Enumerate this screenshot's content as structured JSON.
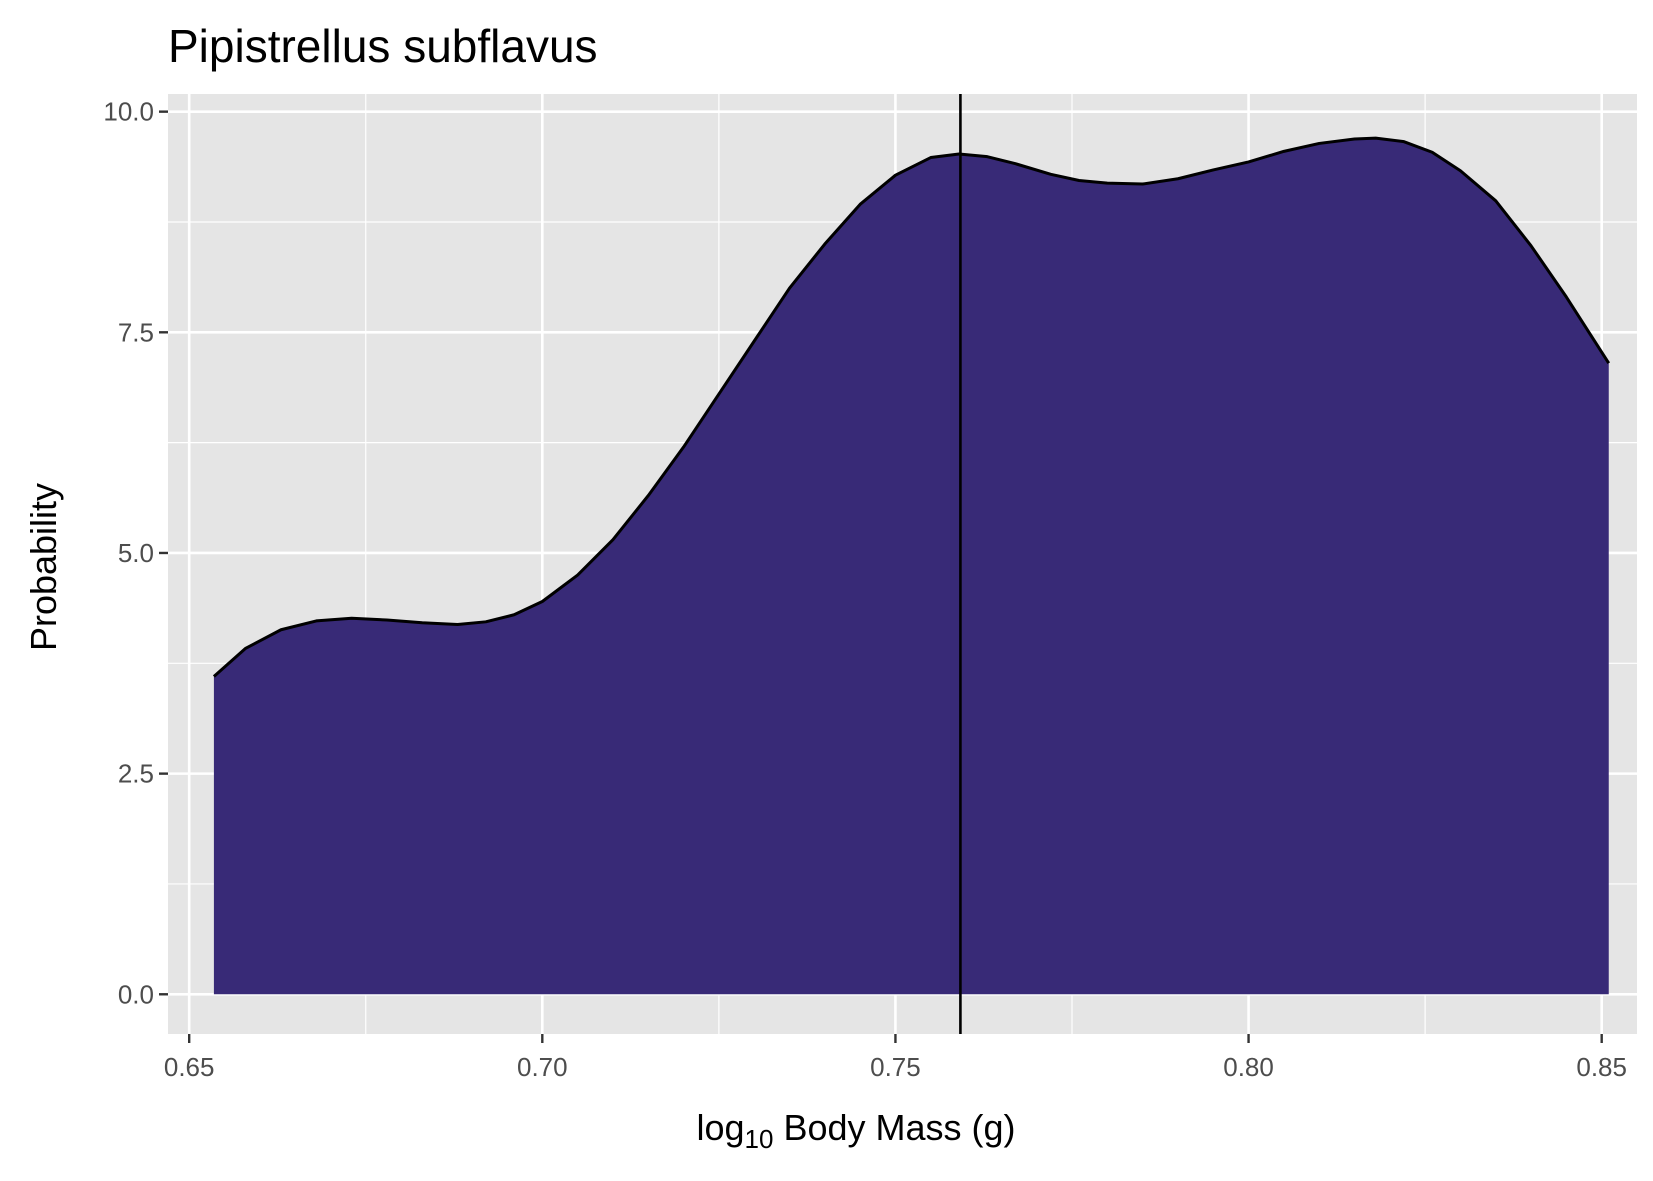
{
  "colors": {
    "panel_background": "#e5e5e5",
    "grid": "#ffffff",
    "fill": "#382a77",
    "line": "#000000"
  },
  "chart_data": {
    "type": "area",
    "title": "Pipistrellus subflavus",
    "xlabel": {
      "prefix": "log",
      "subscript": "10",
      "suffix": " Body Mass (g)"
    },
    "ylabel": "Probability",
    "xlim": [
      0.647,
      0.855
    ],
    "ylim": [
      -0.45,
      10.2
    ],
    "x_ticks": [
      0.65,
      0.7,
      0.75,
      0.8,
      0.85
    ],
    "x_tick_labels": [
      "0.65",
      "0.70",
      "0.75",
      "0.80",
      "0.85"
    ],
    "y_ticks": [
      0,
      2.5,
      5,
      7.5,
      10
    ],
    "y_tick_labels": [
      "0.0",
      "2.5",
      "5.0",
      "7.5",
      "10.0"
    ],
    "grid": true,
    "series": [
      {
        "x": [
          0.6535,
          0.658,
          0.663,
          0.668,
          0.673,
          0.678,
          0.683,
          0.688,
          0.692,
          0.696,
          0.7,
          0.705,
          0.71,
          0.715,
          0.72,
          0.725,
          0.73,
          0.735,
          0.74,
          0.745,
          0.75,
          0.755,
          0.759,
          0.763,
          0.767,
          0.772,
          0.776,
          0.78,
          0.785,
          0.79,
          0.795,
          0.8,
          0.805,
          0.81,
          0.815,
          0.818,
          0.822,
          0.826,
          0.83,
          0.835,
          0.84,
          0.845,
          0.851
        ],
        "y": [
          3.6,
          3.92,
          4.13,
          4.23,
          4.26,
          4.24,
          4.21,
          4.19,
          4.22,
          4.3,
          4.45,
          4.75,
          5.15,
          5.65,
          6.2,
          6.8,
          7.4,
          8.0,
          8.5,
          8.95,
          9.28,
          9.48,
          9.52,
          9.49,
          9.41,
          9.29,
          9.22,
          9.19,
          9.18,
          9.24,
          9.34,
          9.43,
          9.55,
          9.64,
          9.69,
          9.7,
          9.66,
          9.54,
          9.33,
          8.99,
          8.48,
          7.9,
          7.15
        ]
      }
    ],
    "vline_x": 0.7592
  }
}
